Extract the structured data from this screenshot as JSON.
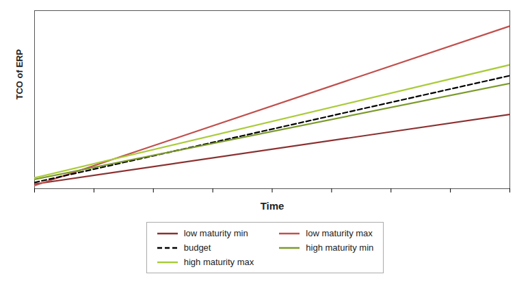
{
  "chart_data": {
    "type": "line",
    "x": [
      0,
      10
    ],
    "series": [
      {
        "name": "low maturity min",
        "color": "#8B3030",
        "line_style": "solid",
        "values": [
          0.03,
          0.48
        ]
      },
      {
        "name": "low maturity max",
        "color": "#C0504D",
        "line_style": "solid",
        "values": [
          0.02,
          1.05
        ]
      },
      {
        "name": "budget",
        "color": "#000000",
        "line_style": "dashed",
        "values": [
          0.04,
          0.73
        ]
      },
      {
        "name": "high maturity min",
        "color": "#7B9A2A",
        "line_style": "solid",
        "values": [
          0.06,
          0.68
        ]
      },
      {
        "name": "high maturity max",
        "color": "#AACB3A",
        "line_style": "solid",
        "values": [
          0.07,
          0.8
        ]
      }
    ],
    "xlabel": "Time",
    "ylabel": "TCO of ERP",
    "xlim": [
      0,
      10
    ],
    "ylim": [
      0,
      1.15
    ],
    "xticks": [
      0,
      1.25,
      2.5,
      3.75,
      5,
      6.25,
      7.5,
      8.75,
      10
    ],
    "tick_labels": false,
    "grid": false,
    "legend": "bottom"
  }
}
